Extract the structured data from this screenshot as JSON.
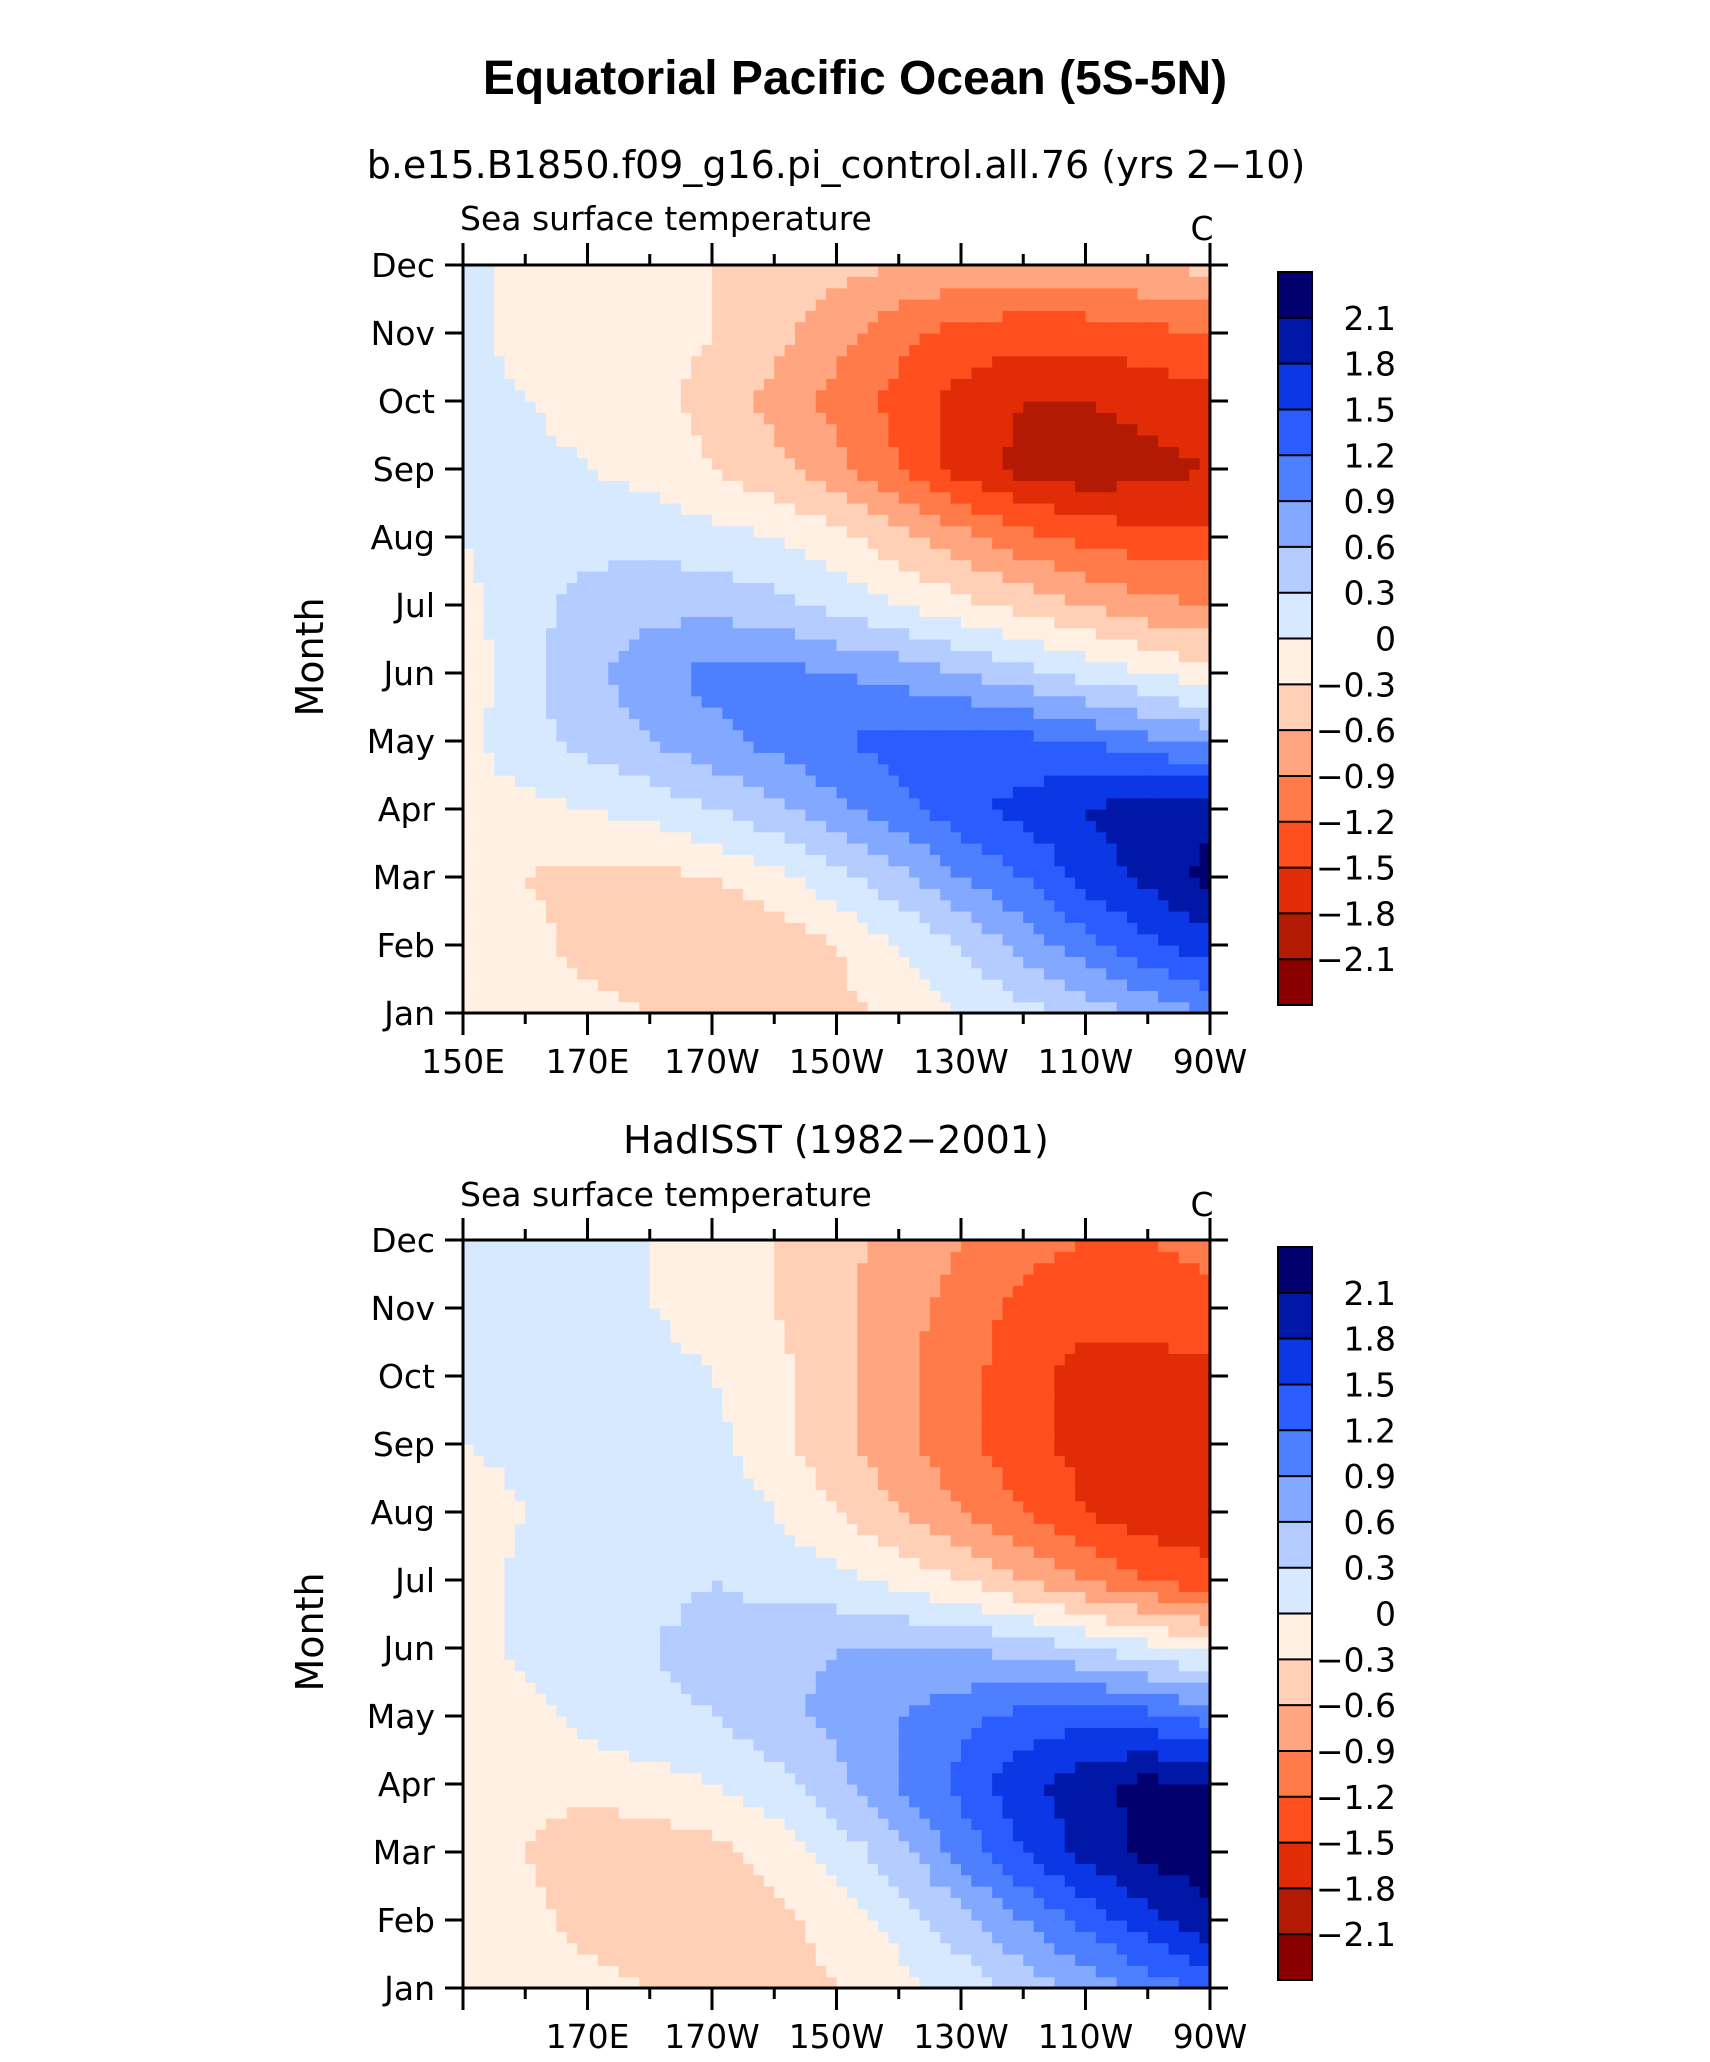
{
  "figure": {
    "title": "Equatorial Pacific Ocean (5S-5N)",
    "colorbar_colors": [
      "#02006e",
      "#0017a8",
      "#0b37e6",
      "#2a5cff",
      "#4d7fff",
      "#83a8ff",
      "#b4ccff",
      "#d6e9ff",
      "#fff0e3",
      "#ffd0b6",
      "#ffa57f",
      "#ff7b4a",
      "#ff4f1f",
      "#e22c08",
      "#b31a03",
      "#8a0000"
    ],
    "colorbar_labels": [
      "2.1",
      "1.8",
      "1.5",
      "1.2",
      "0.9",
      "0.6",
      "0.3",
      "0",
      "−0.3",
      "−0.6",
      "−0.9",
      "−1.2",
      "−1.5",
      "−1.8",
      "−2.1"
    ]
  },
  "chart_data": [
    {
      "type": "heatmap",
      "panel_title": "b.e15.B1850.f09_g16.pi_control.all.76 (yrs 2−10)",
      "variable_label": "Sea surface temperature",
      "units_label": "C",
      "ylabel": "Month",
      "xticks": [
        "150E",
        "170E",
        "170W",
        "150W",
        "130W",
        "110W",
        "90W"
      ],
      "yticks": [
        "Jan",
        "Feb",
        "Mar",
        "Apr",
        "May",
        "Jun",
        "Jul",
        "Aug",
        "Sep",
        "Oct",
        "Nov",
        "Dec"
      ],
      "xrange_deg_east": [
        150,
        270
      ],
      "levels": [
        -2.1,
        -1.8,
        -1.5,
        -1.2,
        -0.9,
        -0.6,
        -0.3,
        0,
        0.3,
        0.6,
        0.9,
        1.2,
        1.5,
        1.8,
        2.1
      ],
      "x_deg_east": [
        150,
        160,
        170,
        180,
        190,
        200,
        210,
        220,
        230,
        240,
        250,
        260,
        270
      ],
      "y_month": [
        "Jan",
        "Feb",
        "Mar",
        "Apr",
        "May",
        "Jun",
        "Jul",
        "Aug",
        "Sep",
        "Oct",
        "Nov",
        "Dec"
      ],
      "values": [
        [
          0.0,
          -0.1,
          -0.2,
          -0.3,
          -0.4,
          -0.5,
          -0.4,
          -0.2,
          0.0,
          0.2,
          0.4,
          0.7,
          0.9
        ],
        [
          -0.1,
          -0.2,
          -0.4,
          -0.5,
          -0.6,
          -0.5,
          -0.3,
          0.0,
          0.3,
          0.7,
          1.1,
          1.4,
          1.7
        ],
        [
          -0.1,
          -0.3,
          -0.4,
          -0.4,
          -0.3,
          -0.1,
          0.2,
          0.5,
          0.9,
          1.2,
          1.6,
          1.9,
          2.2
        ],
        [
          -0.1,
          -0.1,
          0.0,
          0.1,
          0.3,
          0.5,
          0.8,
          1.1,
          1.4,
          1.6,
          1.8,
          2.0,
          2.0
        ],
        [
          -0.1,
          0.2,
          0.4,
          0.6,
          0.8,
          1.0,
          1.2,
          1.3,
          1.4,
          1.3,
          1.2,
          1.0,
          0.8
        ],
        [
          -0.2,
          0.2,
          0.5,
          0.8,
          1.0,
          1.0,
          0.9,
          0.8,
          0.6,
          0.4,
          0.2,
          0.0,
          -0.2
        ],
        [
          -0.1,
          0.2,
          0.4,
          0.5,
          0.5,
          0.4,
          0.2,
          0.0,
          -0.2,
          -0.4,
          -0.6,
          -0.8,
          -0.9
        ],
        [
          0.0,
          0.2,
          0.2,
          0.2,
          0.1,
          0.0,
          -0.2,
          -0.5,
          -0.8,
          -1.1,
          -1.3,
          -1.4,
          -1.4
        ],
        [
          0.1,
          0.1,
          0.0,
          -0.1,
          -0.3,
          -0.5,
          -0.8,
          -1.2,
          -1.6,
          -1.9,
          -2.0,
          -1.9,
          -1.8
        ],
        [
          0.1,
          0.0,
          -0.1,
          -0.2,
          -0.4,
          -0.7,
          -1.0,
          -1.3,
          -1.6,
          -1.8,
          -1.8,
          -1.7,
          -1.6
        ],
        [
          0.1,
          -0.1,
          -0.1,
          -0.2,
          -0.3,
          -0.5,
          -0.8,
          -1.1,
          -1.3,
          -1.4,
          -1.4,
          -1.3,
          -1.2
        ],
        [
          0.1,
          -0.1,
          -0.1,
          -0.2,
          -0.3,
          -0.4,
          -0.5,
          -0.6,
          -0.7,
          -0.7,
          -0.6,
          -0.6,
          -0.5
        ]
      ]
    },
    {
      "type": "heatmap",
      "panel_title": "HadISST (1982−2001)",
      "variable_label": "Sea surface temperature",
      "units_label": "C",
      "ylabel": "Month",
      "xticks": [
        "170E",
        "170W",
        "150W",
        "130W",
        "110W",
        "90W"
      ],
      "yticks": [
        "Jan",
        "Feb",
        "Mar",
        "Apr",
        "May",
        "Jun",
        "Jul",
        "Aug",
        "Sep",
        "Oct",
        "Nov",
        "Dec"
      ],
      "xrange_deg_east": [
        150,
        270
      ],
      "levels": [
        -2.1,
        -1.8,
        -1.5,
        -1.2,
        -0.9,
        -0.6,
        -0.3,
        0,
        0.3,
        0.6,
        0.9,
        1.2,
        1.5,
        1.8,
        2.1
      ],
      "x_deg_east": [
        150,
        160,
        170,
        180,
        190,
        200,
        210,
        220,
        230,
        240,
        250,
        260,
        270
      ],
      "y_month": [
        "Jan",
        "Feb",
        "Mar",
        "Apr",
        "May",
        "Jun",
        "Jul",
        "Aug",
        "Sep",
        "Oct",
        "Nov",
        "Dec"
      ],
      "values": [
        [
          0.0,
          -0.1,
          -0.2,
          -0.3,
          -0.4,
          -0.4,
          -0.3,
          -0.1,
          0.1,
          0.4,
          0.7,
          1.0,
          1.3
        ],
        [
          -0.1,
          -0.2,
          -0.4,
          -0.5,
          -0.5,
          -0.4,
          -0.2,
          0.1,
          0.5,
          0.9,
          1.3,
          1.7,
          2.0
        ],
        [
          -0.1,
          -0.3,
          -0.5,
          -0.5,
          -0.4,
          -0.2,
          0.1,
          0.5,
          1.0,
          1.5,
          1.9,
          2.2,
          2.3
        ],
        [
          -0.2,
          -0.2,
          -0.2,
          -0.1,
          0.0,
          0.2,
          0.5,
          0.9,
          1.3,
          1.7,
          2.0,
          2.2,
          2.1
        ],
        [
          -0.2,
          -0.1,
          0.1,
          0.2,
          0.3,
          0.5,
          0.7,
          0.9,
          1.1,
          1.3,
          1.4,
          1.3,
          1.1
        ],
        [
          -0.2,
          0.1,
          0.2,
          0.3,
          0.4,
          0.5,
          0.6,
          0.6,
          0.6,
          0.5,
          0.3,
          0.1,
          -0.1
        ],
        [
          -0.2,
          0.1,
          0.2,
          0.2,
          0.3,
          0.2,
          0.1,
          -0.1,
          -0.3,
          -0.6,
          -0.9,
          -1.2,
          -1.4
        ],
        [
          -0.2,
          0.0,
          0.2,
          0.2,
          0.2,
          0.0,
          -0.3,
          -0.6,
          -0.9,
          -1.2,
          -1.5,
          -1.7,
          -1.7
        ],
        [
          0.0,
          0.1,
          0.2,
          0.3,
          0.1,
          -0.2,
          -0.5,
          -0.8,
          -1.1,
          -1.4,
          -1.6,
          -1.7,
          -1.7
        ],
        [
          0.1,
          0.1,
          0.1,
          0.1,
          0.0,
          -0.2,
          -0.5,
          -0.8,
          -1.1,
          -1.4,
          -1.6,
          -1.6,
          -1.6
        ],
        [
          0.1,
          0.1,
          0.1,
          0.0,
          -0.1,
          -0.3,
          -0.5,
          -0.8,
          -1.0,
          -1.3,
          -1.4,
          -1.4,
          -1.3
        ],
        [
          0.1,
          0.1,
          0.1,
          0.0,
          -0.1,
          -0.3,
          -0.5,
          -0.7,
          -0.9,
          -1.1,
          -1.2,
          -1.2,
          -1.1
        ]
      ]
    }
  ]
}
